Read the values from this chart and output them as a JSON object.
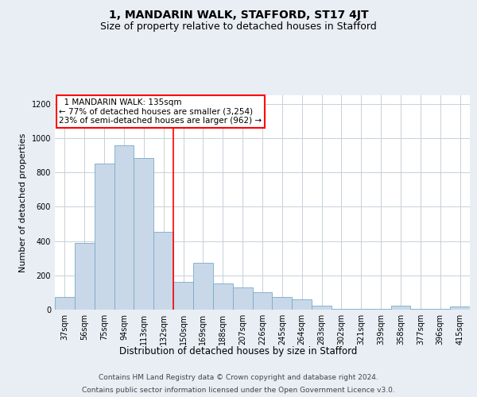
{
  "title": "1, MANDARIN WALK, STAFFORD, ST17 4JT",
  "subtitle": "Size of property relative to detached houses in Stafford",
  "xlabel": "Distribution of detached houses by size in Stafford",
  "ylabel": "Number of detached properties",
  "categories": [
    "37sqm",
    "56sqm",
    "75sqm",
    "94sqm",
    "113sqm",
    "132sqm",
    "150sqm",
    "169sqm",
    "188sqm",
    "207sqm",
    "226sqm",
    "245sqm",
    "264sqm",
    "283sqm",
    "302sqm",
    "321sqm",
    "339sqm",
    "358sqm",
    "377sqm",
    "396sqm",
    "415sqm"
  ],
  "values": [
    75,
    390,
    850,
    960,
    885,
    455,
    160,
    275,
    155,
    130,
    100,
    75,
    60,
    25,
    5,
    5,
    5,
    25,
    5,
    5,
    20
  ],
  "bar_color": "#c8d8e8",
  "bar_edge_color": "#7aaac8",
  "vline_x": 5.5,
  "vline_color": "red",
  "annotation_text": "  1 MANDARIN WALK: 135sqm\n← 77% of detached houses are smaller (3,254)\n23% of semi-detached houses are larger (962) →",
  "annotation_box_color": "white",
  "annotation_box_edge": "red",
  "ylim": [
    0,
    1250
  ],
  "yticks": [
    0,
    200,
    400,
    600,
    800,
    1000,
    1200
  ],
  "background_color": "#e8eef4",
  "plot_bg_color": "white",
  "grid_color": "#c8d0d8",
  "footer_line1": "Contains HM Land Registry data © Crown copyright and database right 2024.",
  "footer_line2": "Contains public sector information licensed under the Open Government Licence v3.0.",
  "title_fontsize": 10,
  "subtitle_fontsize": 9,
  "xlabel_fontsize": 8.5,
  "ylabel_fontsize": 8,
  "tick_fontsize": 7,
  "footer_fontsize": 6.5,
  "ann_fontsize": 7.5
}
